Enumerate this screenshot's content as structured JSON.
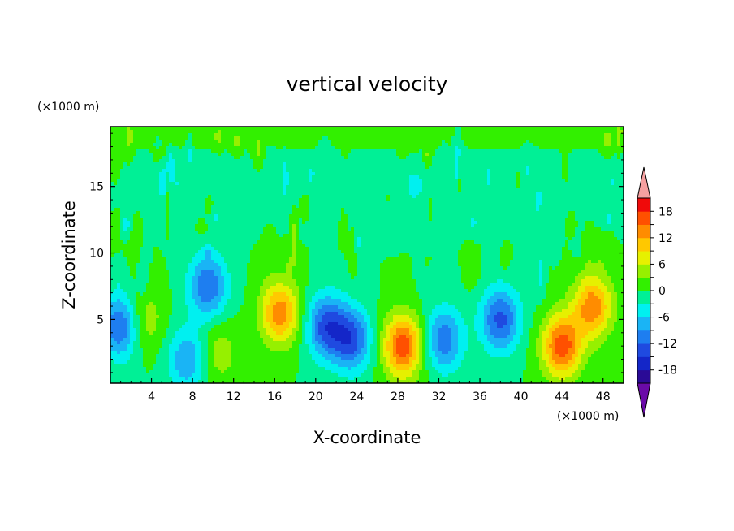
{
  "chart_data": {
    "type": "heatmap",
    "title": "vertical velocity",
    "xlabel": "X-coordinate",
    "ylabel": "Z-coordinate",
    "x_units": "(×1000 m)",
    "y_units": "(×1000 m)",
    "xlim": [
      0,
      50
    ],
    "ylim": [
      0.2,
      19.5
    ],
    "x_ticks": [
      "4",
      "8",
      "12",
      "16",
      "20",
      "24",
      "28",
      "32",
      "36",
      "40",
      "44",
      "48"
    ],
    "y_ticks": [
      "5",
      "10",
      "15"
    ],
    "colorbar": {
      "labels": [
        "18",
        "12",
        "6",
        "0",
        "-6",
        "-12",
        "-18"
      ],
      "label_values": [
        18,
        12,
        6,
        0,
        -6,
        -12,
        -18
      ],
      "levels": [
        -21,
        -18,
        -15,
        -12,
        -9,
        -6,
        -3,
        0,
        3,
        6,
        9,
        12,
        15,
        18,
        21
      ],
      "colors": [
        "#6a0aa8",
        "#2a0a96",
        "#1426c8",
        "#1f4ae0",
        "#1e7ef0",
        "#1ab4f5",
        "#00f0f0",
        "#00f096",
        "#32f000",
        "#96f000",
        "#e6f000",
        "#ffc800",
        "#ff8c00",
        "#ff5000",
        "#f00a0a",
        "#f5a0a0"
      ],
      "extend": "both"
    },
    "features": [
      {
        "x": 1.0,
        "z": 4.5,
        "value": -13
      },
      {
        "x": 3.2,
        "z": 5.0,
        "value": 6
      },
      {
        "x": 7.5,
        "z": 2.0,
        "value": -9
      },
      {
        "x": 9.5,
        "z": 7.5,
        "value": -12
      },
      {
        "x": 10.5,
        "z": 2.5,
        "value": 5
      },
      {
        "x": 16.5,
        "z": 5.5,
        "value": 14
      },
      {
        "x": 21.0,
        "z": 4.5,
        "value": -13
      },
      {
        "x": 23.5,
        "z": 3.5,
        "value": -13
      },
      {
        "x": 28.5,
        "z": 3.0,
        "value": 17
      },
      {
        "x": 32.5,
        "z": 3.5,
        "value": -11
      },
      {
        "x": 38.0,
        "z": 5.0,
        "value": -13
      },
      {
        "x": 44.0,
        "z": 3.0,
        "value": 17
      },
      {
        "x": 47.0,
        "z": 6.0,
        "value": 14
      }
    ]
  }
}
